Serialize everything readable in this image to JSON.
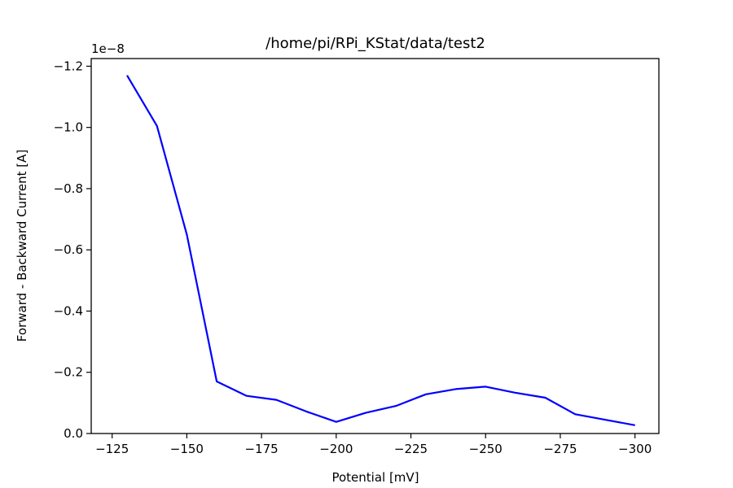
{
  "chart_data": {
    "type": "line",
    "title": "/home/pi/RPi_KStat/data/test2",
    "xlabel": "Potential [mV]",
    "ylabel": "Forward - Backward Current [A]",
    "offset_text": "1e−8",
    "xlim": [
      -118,
      -308
    ],
    "ylim": [
      0.0,
      -1.225
    ],
    "x_ticks": [
      -125,
      -150,
      -175,
      -200,
      -225,
      -250,
      -275,
      -300
    ],
    "x_tick_labels": [
      "−125",
      "−150",
      "−175",
      "−200",
      "−225",
      "−250",
      "−275",
      "−300"
    ],
    "y_ticks": [
      0.0,
      -0.2,
      -0.4,
      -0.6,
      -0.8,
      -1.0,
      -1.2
    ],
    "y_tick_labels": [
      "0.0",
      "−0.2",
      "−0.4",
      "−0.6",
      "−0.8",
      "−1.0",
      "−1.2"
    ],
    "grid": false,
    "legend": "none",
    "series": [
      {
        "color": "#0000ff",
        "x": [
          -130,
          -140,
          -150,
          -160,
          -170,
          -180,
          -190,
          -200,
          -210,
          -220,
          -230,
          -240,
          -250,
          -260,
          -270,
          -280,
          -290,
          -300
        ],
        "y": [
          -1.17,
          -1.005,
          -0.65,
          -0.17,
          -0.123,
          -0.11,
          -0.072,
          -0.038,
          -0.068,
          -0.09,
          -0.128,
          -0.145,
          -0.153,
          -0.133,
          -0.117,
          -0.063,
          -0.045,
          -0.027
        ]
      }
    ]
  }
}
